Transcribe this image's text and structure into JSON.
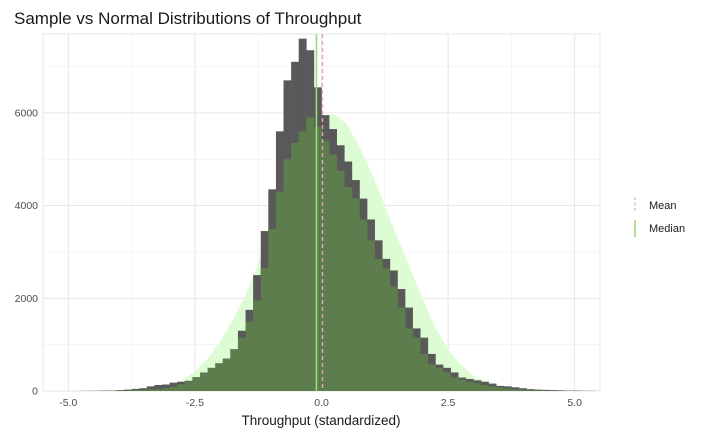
{
  "chart_data": {
    "type": "histogram",
    "title": "Sample vs Normal Distributions of Throughput",
    "xlabel": "Throughput (standardized)",
    "ylabel": "",
    "xlim": [
      -5.5,
      5.5
    ],
    "ylim": [
      0,
      7700
    ],
    "x_ticks": [
      -5,
      -2.5,
      0,
      2.5,
      5
    ],
    "x_tick_labels": [
      "-5.0",
      "-2.5",
      "0.0",
      "2.5",
      "5.0"
    ],
    "y_ticks": [
      0,
      2000,
      4000,
      6000
    ],
    "y_tick_labels": [
      "0",
      "2000",
      "4000",
      "6000"
    ],
    "grid": true,
    "legend_position": "right",
    "colors": {
      "sample_bars": "#595959",
      "normal_bars": "#5e7d4d",
      "normal_density": "#ddfcd4",
      "mean_line": "#e3a6c4",
      "median_line": "#9ddb7d",
      "grid": "#ebebeb"
    },
    "bins": {
      "start": -4.8,
      "width": 0.15,
      "sample": [
        2,
        3,
        5,
        8,
        10,
        20,
        30,
        45,
        60,
        100,
        130,
        140,
        180,
        200,
        220,
        230,
        300,
        400,
        500,
        700,
        900,
        1300,
        1750,
        2500,
        3450,
        4350,
        5600,
        6700,
        7100,
        7600,
        7350,
        6550,
        5950,
        5650,
        5300,
        4950,
        4550,
        4150,
        3700,
        3250,
        2850,
        2600,
        2200,
        1800,
        1350,
        1150,
        800,
        570,
        500,
        400,
        290,
        260,
        230,
        200,
        160,
        110,
        100,
        80,
        60,
        40,
        30,
        25,
        20,
        15,
        10,
        10,
        5,
        3
      ],
      "normal": [
        1,
        2,
        3,
        5,
        8,
        10,
        14,
        20,
        26,
        35,
        40,
        60,
        90,
        150,
        200,
        300,
        400,
        500,
        600,
        700,
        900,
        1150,
        1500,
        1950,
        2650,
        3500,
        4300,
        5000,
        5350,
        5600,
        5900,
        5700,
        5400,
        5100,
        4750,
        4400,
        4150,
        3700,
        3250,
        2850,
        2650,
        2250,
        1800,
        1350,
        1150,
        800,
        570,
        500,
        400,
        290,
        250,
        200,
        170,
        130,
        100,
        80,
        60,
        40,
        30,
        20,
        16,
        12,
        8,
        5,
        3,
        2,
        1,
        1
      ]
    },
    "density": {
      "x": [
        -4.5,
        -4.0,
        -3.5,
        -3.0,
        -2.75,
        -2.5,
        -2.25,
        -2.0,
        -1.75,
        -1.5,
        -1.25,
        -1.0,
        -0.75,
        -0.5,
        -0.25,
        0.0,
        0.25,
        0.5,
        0.75,
        1.0,
        1.25,
        1.5,
        1.75,
        2.0,
        2.25,
        2.5,
        2.75,
        3.0,
        3.5,
        4.0,
        4.5
      ],
      "y": [
        0,
        3,
        30,
        120,
        230,
        420,
        700,
        1070,
        1540,
        2070,
        2750,
        3450,
        4150,
        4850,
        5500,
        5950,
        5970,
        5760,
        5260,
        4680,
        4000,
        3300,
        2650,
        1970,
        1370,
        900,
        570,
        320,
        110,
        30,
        3
      ]
    },
    "reference_lines": [
      {
        "label": "Mean",
        "x": 0.02,
        "style": "dashed"
      },
      {
        "label": "Median",
        "x": -0.1,
        "style": "solid"
      }
    ]
  }
}
